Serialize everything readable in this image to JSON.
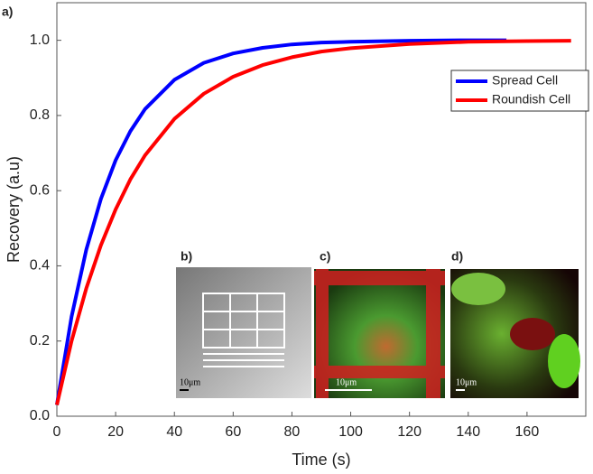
{
  "chart_data": {
    "type": "line",
    "panel_label": "a)",
    "xlabel": "Time (s)",
    "ylabel": "Recovery (a.u)",
    "xlim": [
      0,
      180
    ],
    "ylim": [
      0,
      1.1
    ],
    "xticks": [
      0,
      20,
      40,
      60,
      80,
      100,
      120,
      140,
      160
    ],
    "yticks": [
      {
        "value": 0,
        "label": "0.0"
      },
      0.2,
      0.4,
      0.6,
      0.8,
      {
        "value": 1,
        "label": "1.0"
      }
    ],
    "legend": "upper right",
    "series": [
      {
        "name": "Spread Cell",
        "color": "#0000ff",
        "x": [
          0,
          5,
          10,
          15,
          20,
          25,
          30,
          40,
          50,
          60,
          70,
          80,
          90,
          100,
          120,
          140,
          153
        ],
        "values": [
          0.03,
          0.265,
          0.443,
          0.578,
          0.681,
          0.758,
          0.817,
          0.895,
          0.94,
          0.965,
          0.98,
          0.989,
          0.994,
          0.996,
          0.999,
          1.0,
          1.0
        ]
      },
      {
        "name": "Roundish Cell",
        "color": "#ff0000",
        "x": [
          0,
          5,
          10,
          15,
          20,
          25,
          30,
          40,
          50,
          60,
          70,
          80,
          90,
          100,
          120,
          140,
          160,
          175
        ],
        "values": [
          0.03,
          0.2,
          0.34,
          0.455,
          0.55,
          0.63,
          0.694,
          0.791,
          0.858,
          0.903,
          0.934,
          0.955,
          0.97,
          0.979,
          0.99,
          0.996,
          0.998,
          0.999
        ]
      }
    ],
    "insets": [
      {
        "label": "b)",
        "scale_bar": "10μm"
      },
      {
        "label": "c)",
        "scale_bar": "10μm"
      },
      {
        "label": "d)",
        "scale_bar": "10μm"
      }
    ]
  }
}
